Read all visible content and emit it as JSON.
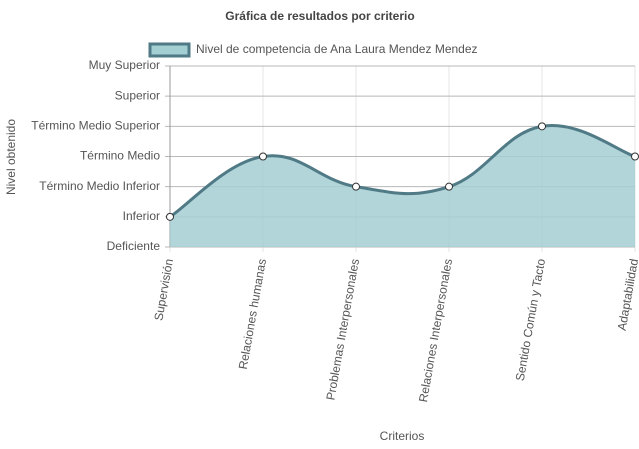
{
  "chart_data": {
    "type": "area",
    "title": "Gráfica de resultados por criterio",
    "x_label": "Criterios",
    "y_label": "Nivel obtenido",
    "categories": [
      "Supervisión",
      "Relaciones humanas",
      "Problemas Interpersonales",
      "Relaciones Interpersonales",
      "Sentido Común y Tacto",
      "Adaptabilidad"
    ],
    "series": [
      {
        "name": "Nivel de competencia de Ana Laura Mendez Mendez",
        "color": "#4f7a86",
        "fill": "#a3ced2",
        "values": [
          1,
          3,
          2,
          2,
          4,
          3
        ]
      }
    ],
    "ylim": [
      0,
      6
    ],
    "yticks": [
      {
        "value": 0,
        "label": "Deficiente"
      },
      {
        "value": 1,
        "label": "Inferior"
      },
      {
        "value": 2,
        "label": "Término Medio Inferior"
      },
      {
        "value": 3,
        "label": "Término Medio"
      },
      {
        "value": 4,
        "label": "Término Medio Superior"
      },
      {
        "value": 5,
        "label": "Superior"
      },
      {
        "value": 6,
        "label": "Muy Superior"
      }
    ],
    "grid": true
  }
}
